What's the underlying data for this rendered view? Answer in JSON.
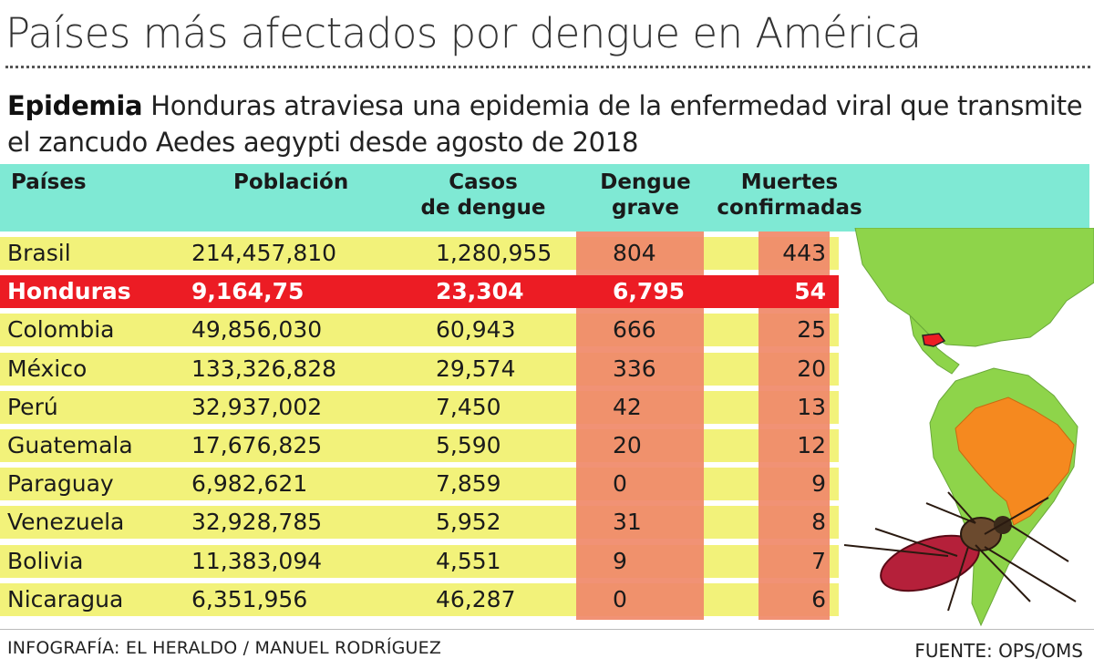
{
  "header": {
    "title": "Países más afectados por dengue en América",
    "intro_bold": "Epidemia",
    "intro_text": "Honduras atraviesa una epidemia de la enfermedad viral que transmite el zancudo Aedes aegypti desde agosto de 2018"
  },
  "chart_data": {
    "type": "table",
    "title": "Países más afectados por dengue en América",
    "columns": {
      "pais": "Países",
      "poblacion": "Población",
      "casos_1": "Casos",
      "casos_2": "de dengue",
      "grave_1": "Dengue",
      "grave_2": "grave",
      "muertes_1": "Muertes",
      "muertes_2": "confirmadas"
    },
    "rows": [
      {
        "pais": "Brasil",
        "poblacion": "214,457,810",
        "casos": "1,280,955",
        "grave": "804",
        "muertes": "443",
        "highlight": false
      },
      {
        "pais": "Honduras",
        "poblacion": "9,164,75",
        "casos": "23,304",
        "grave": "6,795",
        "muertes": "54",
        "highlight": true
      },
      {
        "pais": "Colombia",
        "poblacion": "49,856,030",
        "casos": "60,943",
        "grave": "666",
        "muertes": "25",
        "highlight": false
      },
      {
        "pais": "México",
        "poblacion": "133,326,828",
        "casos": "29,574",
        "grave": "336",
        "muertes": "20",
        "highlight": false
      },
      {
        "pais": "Perú",
        "poblacion": "32,937,002",
        "casos": "7,450",
        "grave": "42",
        "muertes": "13",
        "highlight": false
      },
      {
        "pais": "Guatemala",
        "poblacion": "17,676,825",
        "casos": "5,590",
        "grave": "20",
        "muertes": "12",
        "highlight": false
      },
      {
        "pais": "Paraguay",
        "poblacion": "6,982,621",
        "casos": "7,859",
        "grave": "0",
        "muertes": "9",
        "highlight": false
      },
      {
        "pais": "Venezuela",
        "poblacion": "32,928,785",
        "casos": "5,952",
        "grave": "31",
        "muertes": "8",
        "highlight": false
      },
      {
        "pais": "Bolivia",
        "poblacion": "11,383,094",
        "casos": "4,551",
        "grave": "9",
        "muertes": "7",
        "highlight": false
      },
      {
        "pais": "Nicaragua",
        "poblacion": "6,351,956",
        "casos": "46,287",
        "grave": "0",
        "muertes": "6",
        "highlight": false
      }
    ]
  },
  "footer": {
    "credit": "INFOGRAFÍA: EL HERALDO / MANUEL RODRÍGUEZ",
    "source": "FUENTE: OPS/OMS"
  },
  "colors": {
    "header_bg": "#7fe9d4",
    "row_bg": "#f2f27a",
    "highlight_bg": "#ec1c24",
    "col_red": "#f08a6a",
    "map_land": "#8ed44a",
    "brazil": "#f5891f",
    "honduras": "#ec1c24"
  }
}
